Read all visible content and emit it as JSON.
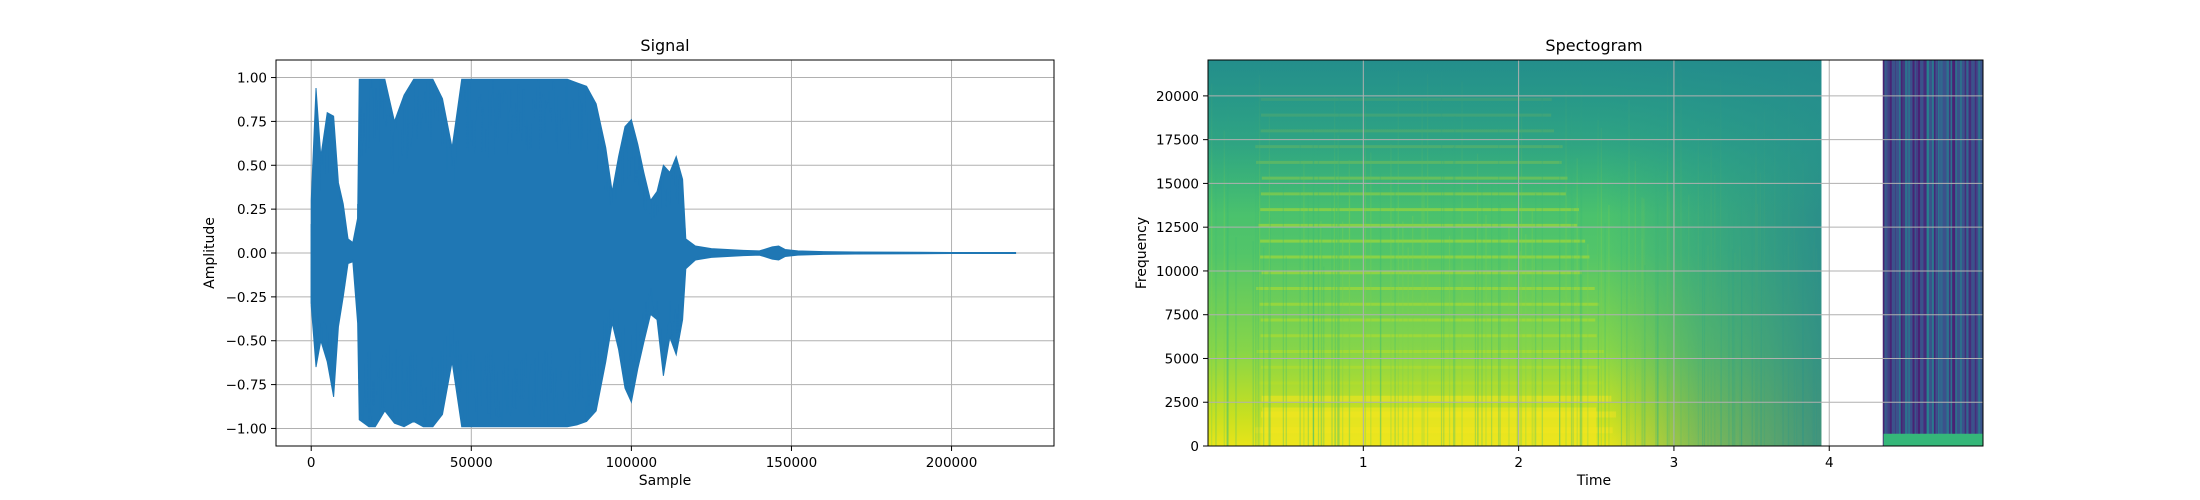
{
  "chart_data": [
    {
      "type": "line",
      "title": "Signal",
      "xlabel": "Sample",
      "ylabel": "Amplitude",
      "xlim": [
        -11000,
        232000
      ],
      "ylim": [
        -1.1,
        1.1
      ],
      "xticks": [
        0,
        50000,
        100000,
        150000,
        200000
      ],
      "xtick_labels": [
        "0",
        "50000",
        "100000",
        "150000",
        "200000"
      ],
      "yticks": [
        1.0,
        0.75,
        0.5,
        0.25,
        0.0,
        -0.25,
        -0.5,
        -0.75,
        -1.0
      ],
      "ytick_labels": [
        "1.00",
        "0.75",
        "0.50",
        "0.25",
        "0.00",
        "−0.25",
        "−0.50",
        "−0.75",
        "−1.00"
      ],
      "grid": true,
      "color": "#1f77b4",
      "series": [
        {
          "x": [
            0,
            1500,
            3000,
            5000,
            7000,
            8500,
            10000,
            11500,
            13000,
            14500,
            15000,
            18000,
            20000,
            23000,
            26000,
            29000,
            32000,
            35000,
            38000,
            41000,
            44000,
            47000,
            50000,
            55000,
            60000,
            65000,
            70000,
            75000,
            80000,
            83000,
            86000,
            89000,
            92000,
            94000,
            96000,
            98000,
            100000,
            102000,
            104000,
            106000,
            108000,
            110000,
            112000,
            114000,
            116000,
            117000,
            120000,
            125000,
            130000,
            135000,
            140000,
            144000,
            146000,
            148000,
            152000,
            160000,
            170000,
            180000,
            190000,
            200000,
            210000,
            220000
          ],
          "upper": [
            0.3,
            0.94,
            0.55,
            0.8,
            0.78,
            0.4,
            0.28,
            0.08,
            0.06,
            0.2,
            0.99,
            0.99,
            0.99,
            0.99,
            0.75,
            0.9,
            0.99,
            0.99,
            0.99,
            0.88,
            0.6,
            0.99,
            0.99,
            0.99,
            0.99,
            0.99,
            0.99,
            0.99,
            0.99,
            0.97,
            0.95,
            0.85,
            0.6,
            0.35,
            0.55,
            0.72,
            0.76,
            0.62,
            0.45,
            0.3,
            0.35,
            0.5,
            0.46,
            0.55,
            0.42,
            0.08,
            0.04,
            0.025,
            0.02,
            0.015,
            0.012,
            0.035,
            0.04,
            0.02,
            0.012,
            0.008,
            0.006,
            0.005,
            0.004,
            0.003,
            0.003,
            0.003
          ],
          "lower": [
            -0.3,
            -0.65,
            -0.5,
            -0.62,
            -0.82,
            -0.42,
            -0.25,
            -0.06,
            -0.05,
            -0.4,
            -0.95,
            -0.99,
            -0.99,
            -0.9,
            -0.97,
            -0.99,
            -0.96,
            -0.99,
            -0.99,
            -0.92,
            -0.62,
            -0.99,
            -0.99,
            -0.99,
            -0.99,
            -0.99,
            -0.99,
            -0.99,
            -0.99,
            -0.98,
            -0.96,
            -0.9,
            -0.62,
            -0.4,
            -0.55,
            -0.77,
            -0.85,
            -0.66,
            -0.5,
            -0.35,
            -0.38,
            -0.7,
            -0.48,
            -0.58,
            -0.38,
            -0.09,
            -0.04,
            -0.025,
            -0.02,
            -0.015,
            -0.012,
            -0.035,
            -0.04,
            -0.02,
            -0.012,
            -0.008,
            -0.006,
            -0.005,
            -0.004,
            -0.003,
            -0.003,
            -0.003
          ]
        }
      ]
    },
    {
      "type": "heatmap",
      "title": "Spectogram",
      "xlabel": "Time",
      "ylabel": "Frequency",
      "xlim": [
        0.0,
        4.99
      ],
      "ylim": [
        0,
        22050
      ],
      "xticks": [
        1,
        2,
        3,
        4
      ],
      "xtick_labels": [
        "1",
        "2",
        "3",
        "4"
      ],
      "yticks": [
        0,
        2500,
        5000,
        7500,
        10000,
        12500,
        15000,
        17500,
        20000
      ],
      "ytick_labels": [
        "0",
        "2500",
        "5000",
        "7500",
        "10000",
        "12500",
        "15000",
        "17500",
        "20000"
      ],
      "grid": true,
      "colormap": "viridis",
      "blank_region": [
        3.95,
        4.35
      ],
      "colors": {
        "low": "#440154",
        "mid": "#21918c",
        "high": "#fde725"
      }
    }
  ]
}
